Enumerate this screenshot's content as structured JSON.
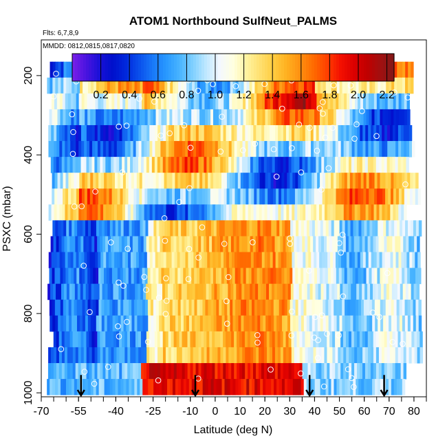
{
  "chart_data": {
    "type": "heatmap",
    "title": "ATOM1 Northbound SulfNeut_PALMS",
    "flights_label": "Flts: 6,7,8,9",
    "dates_label": "MMDD: 0812,0815,0817,0820",
    "xlabel": "Latitude (deg N)",
    "ylabel": "PSXC (mbar)",
    "x_ticks": [
      "-70",
      "-55",
      "-40",
      "-25",
      "-10",
      "0",
      "10",
      "20",
      "30",
      "40",
      "50",
      "60",
      "70",
      "80"
    ],
    "y_ticks": [
      "200",
      "400",
      "600",
      "800",
      "1000"
    ],
    "xlim": [
      -70,
      85
    ],
    "ylim": [
      1010,
      110
    ],
    "colorbar": {
      "min": 0.0,
      "max": 2.25,
      "ticks": [
        "0.2",
        "0.4",
        "0.6",
        "0.8",
        "1.0",
        "1.2",
        "1.4",
        "1.6",
        "1.8",
        "2.0",
        "2.2"
      ],
      "colors": [
        "#7B20E8",
        "#4B14E0",
        "#1A10D8",
        "#0010CC",
        "#0028DC",
        "#0A50EC",
        "#1878F8",
        "#2898FF",
        "#48B4FF",
        "#80D0FF",
        "#C0E8FF",
        "#F4F8FF",
        "#FFFFE0",
        "#FFF4A0",
        "#FFE070",
        "#FFCC40",
        "#FFB020",
        "#FF9010",
        "#FF6A00",
        "#FF4000",
        "#F41000",
        "#DC0000",
        "#C00000",
        "#A01010",
        "#801818"
      ]
    },
    "pressure_levels": [
      185,
      225,
      265,
      305,
      345,
      385,
      425,
      465,
      505,
      545,
      585,
      625,
      665,
      705,
      745,
      785,
      825,
      865,
      905,
      945,
      985
    ],
    "profile_latitudes": [
      -54,
      -8,
      38,
      68
    ]
  }
}
